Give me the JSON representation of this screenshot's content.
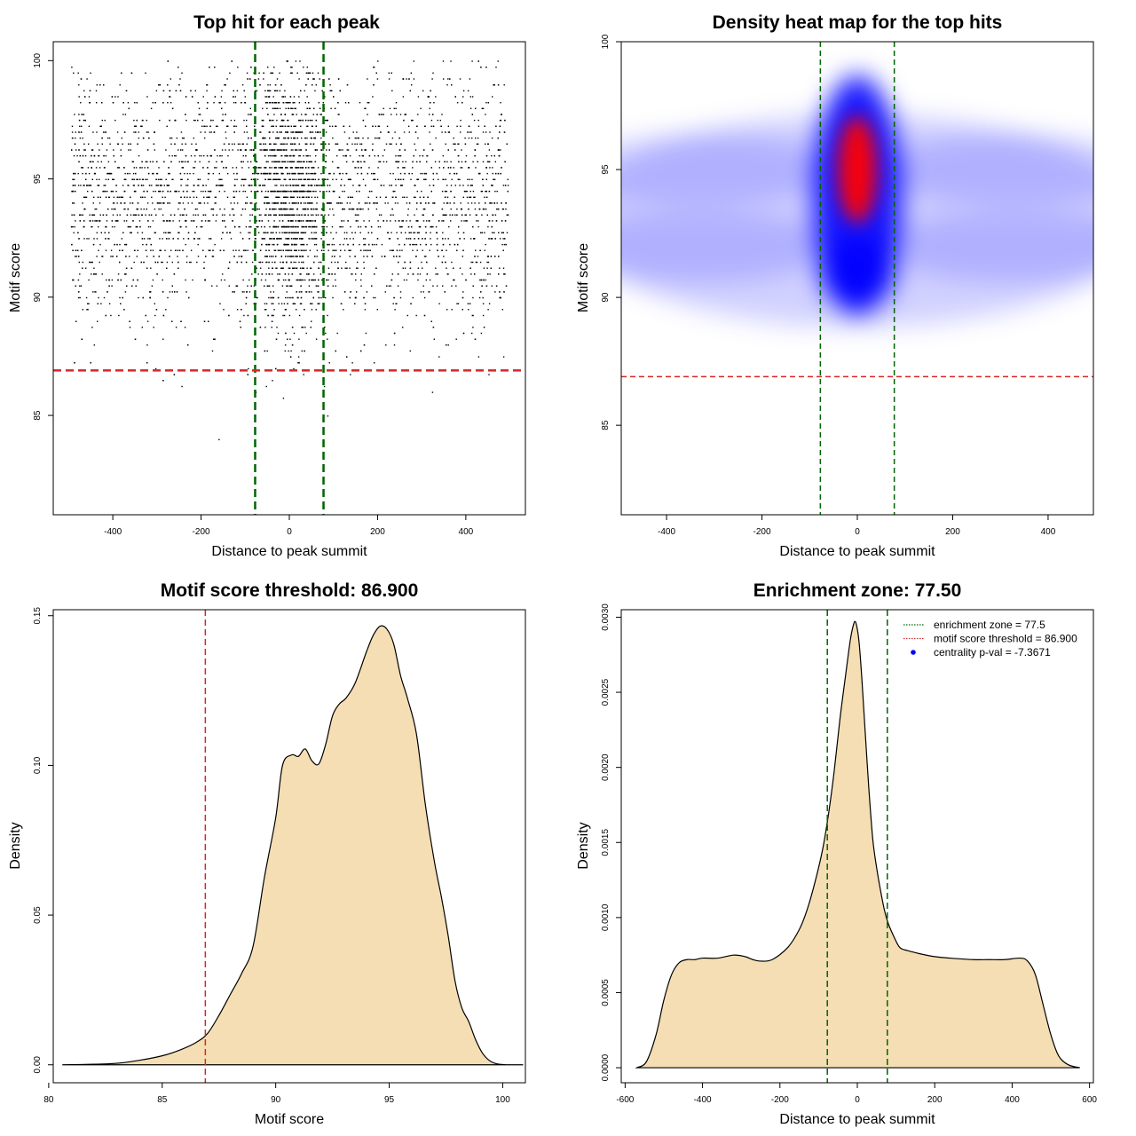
{
  "chart_data": [
    {
      "type": "scatter",
      "title": "Top hit for each peak",
      "xlabel": "Distance to peak summit",
      "ylabel": "Motif score",
      "xlim": [
        -535,
        535
      ],
      "ylim": [
        80.8,
        100.8
      ],
      "xticks": [
        -400,
        -200,
        0,
        200,
        400
      ],
      "yticks": [
        85,
        90,
        95,
        100
      ],
      "xtick_labels": [
        "-400",
        "-200",
        "0",
        "200",
        "400"
      ],
      "ytick_labels": [
        "85",
        "90",
        "95",
        "100"
      ],
      "point_color": "#000000",
      "x_range_of_points": [
        -495,
        495
      ],
      "y_range_of_points": [
        81.5,
        100
      ],
      "vlines": {
        "values": [
          -77.5,
          77.5
        ],
        "color": "#006400",
        "style": "dashed"
      },
      "hline": {
        "value": 86.9,
        "color": "#d62728",
        "style": "dashed"
      },
      "grid": false
    },
    {
      "type": "heatmap",
      "title": "Density heat map for the top hits",
      "xlabel": "Distance to peak summit",
      "ylabel": "Motif score",
      "xlim": [
        -495,
        495
      ],
      "ylim": [
        81.5,
        100
      ],
      "xticks": [
        -400,
        -200,
        0,
        200,
        400
      ],
      "yticks": [
        85,
        90,
        95,
        100
      ],
      "xtick_labels": [
        "-400",
        "-200",
        "0",
        "200",
        "400"
      ],
      "ytick_labels": [
        "85",
        "90",
        "95",
        "100"
      ],
      "color_scale": [
        "#ffffff",
        "#0000ff",
        "#ff0000"
      ],
      "density_peak": {
        "x": 0,
        "y": 95
      },
      "vlines": {
        "values": [
          -77.5,
          77.5
        ],
        "color": "#006400",
        "style": "dashed"
      },
      "hline": {
        "value": 86.9,
        "color": "#d62728",
        "style": "dashed"
      },
      "grid": false
    },
    {
      "type": "area",
      "title": "Motif score threshold: 86.900",
      "xlabel": "Motif score",
      "ylabel": "Density",
      "xlim": [
        80.2,
        101.0
      ],
      "ylim": [
        -0.006,
        0.152
      ],
      "xticks": [
        80,
        85,
        90,
        95,
        100
      ],
      "yticks": [
        0.0,
        0.05,
        0.1,
        0.15
      ],
      "xtick_labels": [
        "80",
        "85",
        "90",
        "95",
        "100"
      ],
      "ytick_labels": [
        "0.00",
        "0.05",
        "0.10",
        "0.15"
      ],
      "fill_color": "#f5deb3",
      "line_color": "#000000",
      "x": [
        80.6,
        82.0,
        83.0,
        84.0,
        85.0,
        85.8,
        86.5,
        87.0,
        87.5,
        88.0,
        88.5,
        89.0,
        89.5,
        90.0,
        90.3,
        90.7,
        91.0,
        91.3,
        91.6,
        91.9,
        92.2,
        92.5,
        92.8,
        93.1,
        93.5,
        94.0,
        94.3,
        94.6,
        94.9,
        95.2,
        95.5,
        95.8,
        96.2,
        96.6,
        97.0,
        97.3,
        97.6,
        97.9,
        98.2,
        98.5,
        98.8,
        99.1,
        99.4,
        99.7,
        100.0,
        100.4,
        100.9
      ],
      "y": [
        0.0,
        0.0002,
        0.0005,
        0.0015,
        0.003,
        0.005,
        0.0075,
        0.0105,
        0.0165,
        0.0235,
        0.0305,
        0.0395,
        0.0625,
        0.0825,
        0.1,
        0.1035,
        0.103,
        0.1055,
        0.1015,
        0.1005,
        0.107,
        0.1165,
        0.1205,
        0.1225,
        0.1275,
        0.138,
        0.1435,
        0.1465,
        0.1455,
        0.1405,
        0.13,
        0.1225,
        0.1105,
        0.0865,
        0.0675,
        0.056,
        0.043,
        0.028,
        0.019,
        0.0145,
        0.0085,
        0.004,
        0.0015,
        0.0004,
        0.0001,
        0.0,
        0.0
      ],
      "vline": {
        "value": 86.9,
        "color": "#d62728",
        "style": "dashed"
      },
      "grid": false
    },
    {
      "type": "area",
      "title": "Enrichment zone: 77.50",
      "xlabel": "Distance to peak summit",
      "ylabel": "Density",
      "xlim": [
        -610,
        610
      ],
      "ylim": [
        -0.0001,
        0.00305
      ],
      "xticks": [
        -600,
        -400,
        -200,
        0,
        200,
        400,
        600
      ],
      "yticks": [
        0.0,
        0.0005,
        0.001,
        0.0015,
        0.002,
        0.0025,
        0.003
      ],
      "xtick_labels": [
        "-600",
        "-400",
        "-200",
        "0",
        "200",
        "400",
        "600"
      ],
      "ytick_labels": [
        "0.0000",
        "0.0005",
        "0.0010",
        "0.0015",
        "0.0020",
        "0.0025",
        "0.0030"
      ],
      "fill_color": "#f5deb3",
      "line_color": "#000000",
      "x": [
        -570,
        -545,
        -520,
        -500,
        -480,
        -460,
        -440,
        -420,
        -400,
        -360,
        -320,
        -290,
        -270,
        -250,
        -220,
        -180,
        -150,
        -130,
        -110,
        -90,
        -75,
        -60,
        -45,
        -30,
        -18,
        -10,
        -5,
        0,
        5,
        12,
        20,
        30,
        40,
        50,
        60,
        70,
        80,
        95,
        110,
        130,
        160,
        200,
        240,
        300,
        340,
        380,
        420,
        440,
        460,
        480,
        500,
        520,
        545,
        575
      ],
      "y": [
        0.0,
        4e-05,
        0.00022,
        0.00045,
        0.00062,
        0.0007,
        0.00072,
        0.00072,
        0.00073,
        0.00073,
        0.00075,
        0.00074,
        0.00072,
        0.00071,
        0.00072,
        0.0008,
        0.00092,
        0.00105,
        0.00123,
        0.00145,
        0.00168,
        0.00197,
        0.00232,
        0.00262,
        0.00285,
        0.00295,
        0.00297,
        0.00292,
        0.00282,
        0.00258,
        0.00225,
        0.00185,
        0.00152,
        0.00133,
        0.00118,
        0.00105,
        0.00096,
        0.00087,
        0.0008,
        0.00078,
        0.00076,
        0.00074,
        0.00073,
        0.00072,
        0.00072,
        0.00072,
        0.00073,
        0.00071,
        0.00062,
        0.00042,
        0.00022,
        8e-05,
        2e-05,
        0.0
      ],
      "vlines": {
        "values": [
          -77.5,
          77.5
        ],
        "color": "#006400",
        "style": "dashed"
      },
      "legend": {
        "placement": "top-right",
        "entries": [
          {
            "label": "enrichment zone = 77.5",
            "color": "#006400",
            "symbol": "dotted-line"
          },
          {
            "label": "motif score threshold = 86.900",
            "color": "#d62728",
            "symbol": "dotted-line"
          },
          {
            "label": "centrality p-val = -7.3671",
            "color": "#0000ff",
            "symbol": "dot"
          }
        ]
      },
      "grid": false
    }
  ]
}
